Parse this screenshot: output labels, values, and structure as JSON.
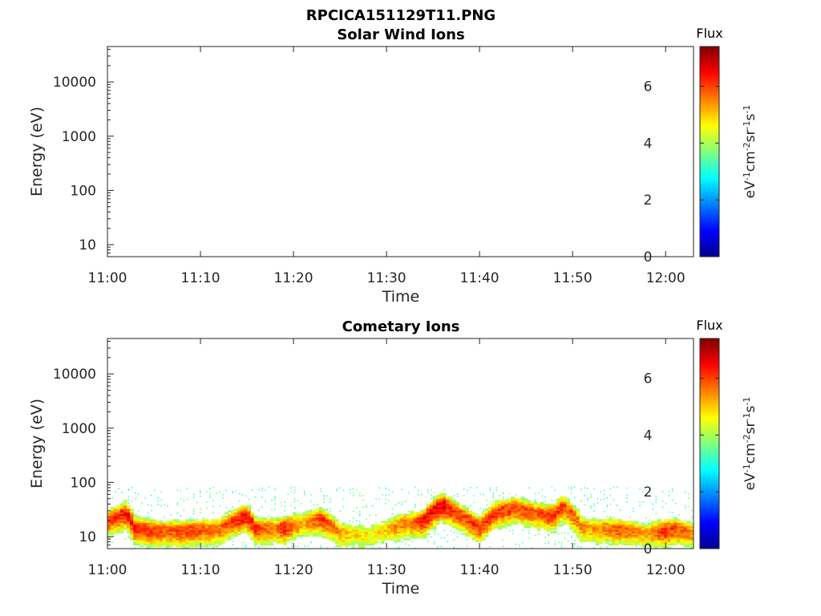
{
  "figure": {
    "title": "RPCICA151129T11.PNG"
  },
  "colors": {
    "colormap": [
      "#00008f",
      "#0000ff",
      "#0080ff",
      "#00ffff",
      "#80ff80",
      "#ffff00",
      "#ff8000",
      "#ff0000",
      "#800000"
    ],
    "axis": "#262626"
  },
  "chart_data": [
    {
      "type": "heatmap",
      "title": "Solar Wind Ions",
      "xlabel": "Time",
      "ylabel": "Energy (eV)",
      "x_tick_labels": [
        "11:00",
        "11:10",
        "11:20",
        "11:30",
        "11:40",
        "11:50",
        "12:00"
      ],
      "x_ticks_minutes": [
        0,
        10,
        20,
        30,
        40,
        50,
        60
      ],
      "xlim_minutes": [
        0,
        63
      ],
      "y_scale": "log",
      "y_tick_labels": [
        "10",
        "100",
        "1000",
        "10000"
      ],
      "y_ticks": [
        10,
        100,
        1000,
        10000
      ],
      "ylim": [
        6,
        45000
      ],
      "colorbar": {
        "label": "Flux",
        "unit": "eV-1cm-2sr-1s-1",
        "ticks": [
          "0",
          "2",
          "4",
          "6"
        ],
        "range": [
          0,
          7.4
        ]
      },
      "data": []
    },
    {
      "type": "heatmap",
      "title": "Cometary Ions",
      "xlabel": "Time",
      "ylabel": "Energy (eV)",
      "x_tick_labels": [
        "11:00",
        "11:10",
        "11:20",
        "11:30",
        "11:40",
        "11:50",
        "12:00"
      ],
      "x_ticks_minutes": [
        0,
        10,
        20,
        30,
        40,
        50,
        60
      ],
      "xlim_minutes": [
        0,
        63
      ],
      "y_scale": "log",
      "y_tick_labels": [
        "10",
        "100",
        "1000",
        "10000"
      ],
      "y_ticks": [
        10,
        100,
        1000,
        10000
      ],
      "ylim": [
        6,
        45000
      ],
      "colorbar": {
        "label": "Flux",
        "unit": "eV-1cm-2sr-1s-1",
        "ticks": [
          "0",
          "2",
          "4",
          "6"
        ],
        "range": [
          0,
          7.4
        ]
      },
      "scatter_max_energy_eV": 85,
      "peak_energy_eV_by_minute": [
        [
          0,
          20
        ],
        [
          2,
          28
        ],
        [
          3,
          15
        ],
        [
          5,
          13
        ],
        [
          8,
          13
        ],
        [
          12,
          14
        ],
        [
          15,
          25
        ],
        [
          16,
          14
        ],
        [
          19,
          15
        ],
        [
          23,
          22
        ],
        [
          25,
          12
        ],
        [
          28,
          11
        ],
        [
          30,
          14
        ],
        [
          32,
          18
        ],
        [
          34,
          20
        ],
        [
          36,
          40
        ],
        [
          38,
          25
        ],
        [
          40,
          15
        ],
        [
          42,
          30
        ],
        [
          44,
          35
        ],
        [
          46,
          28
        ],
        [
          48,
          25
        ],
        [
          49,
          38
        ],
        [
          51,
          15
        ],
        [
          55,
          14
        ],
        [
          58,
          12
        ],
        [
          61,
          14
        ],
        [
          63,
          12
        ]
      ],
      "peak_flux_by_minute": [
        [
          0,
          6.0
        ],
        [
          2,
          6.4
        ],
        [
          4,
          6.3
        ],
        [
          6,
          5.8
        ],
        [
          9,
          6.0
        ],
        [
          12,
          5.7
        ],
        [
          15,
          6.5
        ],
        [
          18,
          5.5
        ],
        [
          19,
          6.4
        ],
        [
          21,
          5.2
        ],
        [
          23,
          6.2
        ],
        [
          26,
          5.0
        ],
        [
          29,
          4.7
        ],
        [
          31,
          5.4
        ],
        [
          33,
          5.8
        ],
        [
          34,
          6.4
        ],
        [
          36,
          6.6
        ],
        [
          38,
          6.0
        ],
        [
          40,
          6.2
        ],
        [
          42,
          6.1
        ],
        [
          44,
          6.0
        ],
        [
          46,
          5.8
        ],
        [
          48,
          6.2
        ],
        [
          50,
          5.8
        ],
        [
          52,
          5.3
        ],
        [
          55,
          5.9
        ],
        [
          58,
          5.2
        ],
        [
          60,
          6.2
        ],
        [
          63,
          5.5
        ]
      ]
    }
  ]
}
